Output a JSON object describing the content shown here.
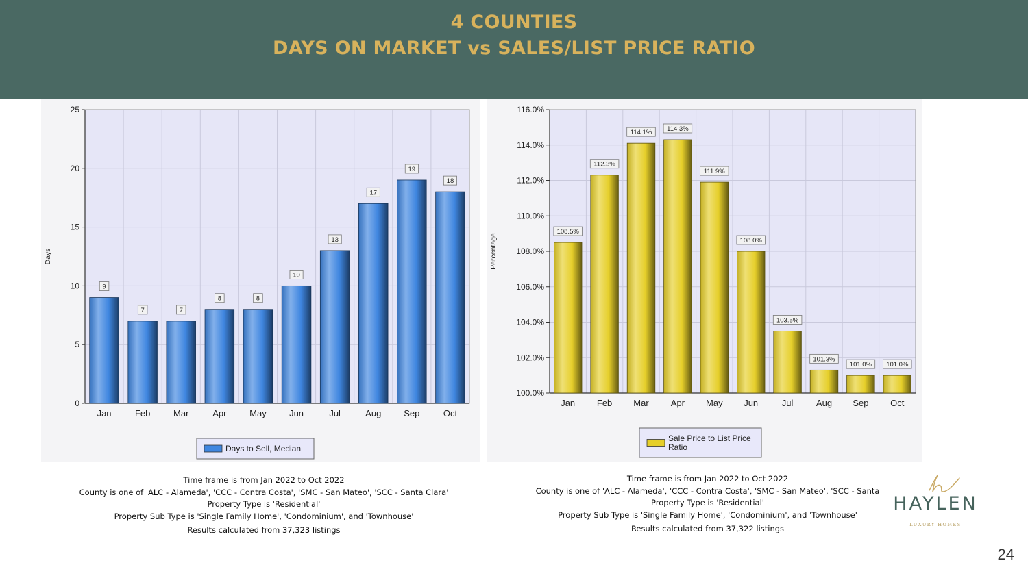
{
  "header": {
    "title_line1": "4 COUNTIES",
    "title_line2": "DAYS ON MARKET vs SALES/LIST PRICE RATIO"
  },
  "chart_data": [
    {
      "type": "bar",
      "categories": [
        "Jan",
        "Feb",
        "Mar",
        "Apr",
        "May",
        "Jun",
        "Jul",
        "Aug",
        "Sep",
        "Oct"
      ],
      "series": [
        {
          "name": "Days to Sell, Median",
          "values": [
            9,
            7,
            7,
            8,
            8,
            10,
            13,
            17,
            19,
            18
          ]
        }
      ],
      "data_labels": [
        "9",
        "7",
        "7",
        "8",
        "8",
        "10",
        "13",
        "17",
        "19",
        "18"
      ],
      "ylabel": "Days",
      "ylim": [
        0,
        25
      ],
      "yticks": [
        "0",
        "5",
        "10",
        "15",
        "20",
        "25"
      ],
      "ytick_values": [
        0,
        5,
        10,
        15,
        20,
        25
      ],
      "grid": true,
      "legend_position": "bottom-center",
      "bar_color": "#3f86e0"
    },
    {
      "type": "bar",
      "categories": [
        "Jan",
        "Feb",
        "Mar",
        "Apr",
        "May",
        "Jun",
        "Jul",
        "Aug",
        "Sep",
        "Oct"
      ],
      "series": [
        {
          "name": "Sale Price to List Price Ratio",
          "values": [
            108.5,
            112.3,
            114.1,
            114.3,
            111.9,
            108.0,
            103.5,
            101.3,
            101.0,
            101.0
          ]
        }
      ],
      "data_labels": [
        "108.5%",
        "112.3%",
        "114.1%",
        "114.3%",
        "111.9%",
        "108.0%",
        "103.5%",
        "101.3%",
        "101.0%",
        "101.0%"
      ],
      "legend_lines": [
        "Sale Price to List Price",
        "Ratio"
      ],
      "ylabel": "Percentage",
      "ylim": [
        100,
        116
      ],
      "yticks": [
        "100.0%",
        "102.0%",
        "104.0%",
        "106.0%",
        "108.0%",
        "110.0%",
        "112.0%",
        "114.0%",
        "116.0%"
      ],
      "ytick_values": [
        100,
        102,
        104,
        106,
        108,
        110,
        112,
        114,
        116
      ],
      "grid": true,
      "legend_position": "bottom-center",
      "bar_color": "#e6cf2a"
    }
  ],
  "captions": {
    "left": [
      "Time frame is from Jan 2022 to Oct 2022",
      "County is one of 'ALC - Alameda', 'CCC - Contra Costa', 'SMC - San Mateo', 'SCC - Santa Clara'",
      "Property Type is 'Residential'",
      "Property Sub Type is 'Single Family Home', 'Condominium', and 'Townhouse'",
      "Results calculated from 37,323 listings"
    ],
    "right": [
      "Time frame is from Jan 2022 to Oct 2022",
      "County is one of 'ALC - Alameda', 'CCC - Contra Costa', 'SMC - San Mateo', 'SCC - Santa",
      "Property Type is 'Residential'",
      "Property Sub Type is 'Single Family Home', 'Condominium', and 'Townhouse'",
      "Results calculated from 37,322 listings"
    ]
  },
  "logo": {
    "name": "HAYLEN",
    "tagline": "LUXURY HOMES",
    "accent": "#c9a964"
  },
  "page_number": "24",
  "colors": {
    "header_bg": "#4a6963",
    "header_text": "#d8b25c"
  }
}
